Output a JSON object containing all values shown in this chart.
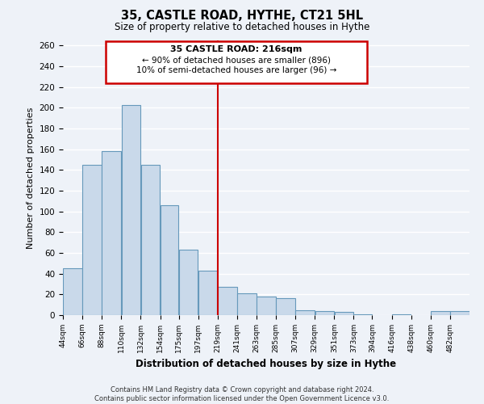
{
  "title": "35, CASTLE ROAD, HYTHE, CT21 5HL",
  "subtitle": "Size of property relative to detached houses in Hythe",
  "xlabel": "Distribution of detached houses by size in Hythe",
  "ylabel": "Number of detached properties",
  "bin_labels": [
    "44sqm",
    "66sqm",
    "88sqm",
    "110sqm",
    "132sqm",
    "154sqm",
    "175sqm",
    "197sqm",
    "219sqm",
    "241sqm",
    "263sqm",
    "285sqm",
    "307sqm",
    "329sqm",
    "351sqm",
    "373sqm",
    "394sqm",
    "416sqm",
    "438sqm",
    "460sqm",
    "482sqm"
  ],
  "bin_edges": [
    44,
    66,
    88,
    110,
    132,
    154,
    175,
    197,
    219,
    241,
    263,
    285,
    307,
    329,
    351,
    373,
    394,
    416,
    438,
    460,
    482,
    504
  ],
  "bar_values": [
    45,
    145,
    158,
    203,
    145,
    106,
    63,
    43,
    27,
    21,
    18,
    16,
    5,
    4,
    3,
    1,
    0,
    1,
    0,
    4,
    4
  ],
  "bar_color": "#c9d9ea",
  "bar_edge_color": "#6699bb",
  "vline_x": 219,
  "vline_color": "#cc0000",
  "annotation_title": "35 CASTLE ROAD: 216sqm",
  "annotation_line1": "← 90% of detached houses are smaller (896)",
  "annotation_line2": "10% of semi-detached houses are larger (96) →",
  "annotation_box_color": "#cc0000",
  "ylim": [
    0,
    265
  ],
  "yticks": [
    0,
    20,
    40,
    60,
    80,
    100,
    120,
    140,
    160,
    180,
    200,
    220,
    240,
    260
  ],
  "background_color": "#eef2f8",
  "grid_color": "#ffffff",
  "footer_line1": "Contains HM Land Registry data © Crown copyright and database right 2024.",
  "footer_line2": "Contains public sector information licensed under the Open Government Licence v3.0."
}
